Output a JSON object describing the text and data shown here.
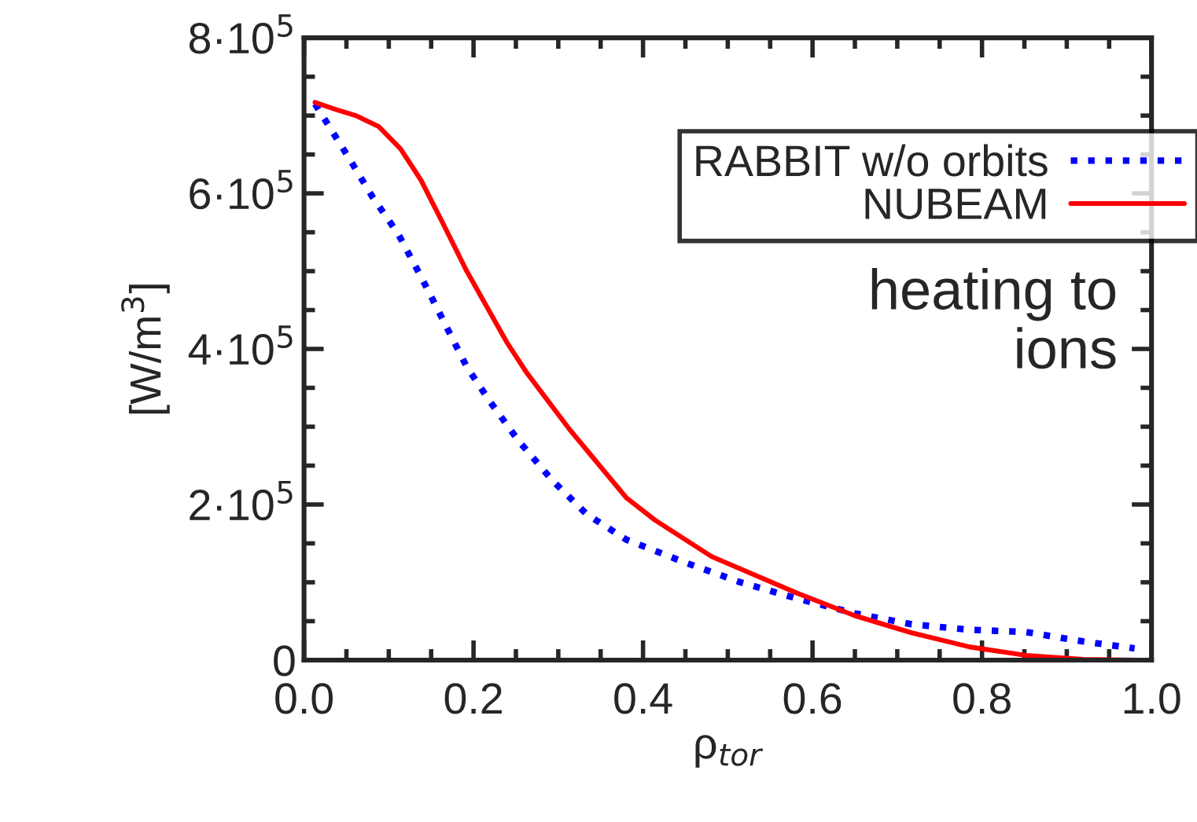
{
  "chart_data": {
    "type": "line",
    "xlabel": "ρ$_{tor}$",
    "ylabel": "[W/m$^{3}$]",
    "annotations": [
      "heating to\nions"
    ],
    "xlim": [
      0,
      1
    ],
    "ylim": [
      0,
      800000
    ],
    "xticks": [
      {
        "value": 0,
        "label": "0.0"
      },
      {
        "value": 0.2,
        "label": "0.2"
      },
      {
        "value": 0.4,
        "label": "0.4"
      },
      {
        "value": 0.6,
        "label": "0.6"
      },
      {
        "value": 0.8,
        "label": "0.8"
      },
      {
        "value": 1,
        "label": "1.0"
      }
    ],
    "yticks": [
      0,
      {
        "value": 200000,
        "label": "2·10$^{5}$"
      },
      {
        "value": 400000,
        "label": "4·10$^{5}$"
      },
      {
        "value": 600000,
        "label": "6·10$^{5}$"
      },
      {
        "value": 800000,
        "label": "8·10$^{5}$"
      }
    ],
    "grid": false,
    "legend": "top right",
    "series": [
      {
        "name": "RABBIT w/o orbits",
        "color": "#0000ff",
        "line_style": "dotted",
        "x": [
          0.013,
          0.051,
          0.081,
          0.111,
          0.138,
          0.165,
          0.192,
          0.219,
          0.253,
          0.293,
          0.333,
          0.38,
          0.448,
          0.515,
          0.582,
          0.65,
          0.717,
          0.785,
          0.852,
          0.919,
          0.98
        ],
        "values": [
          715000,
          649000,
          595000,
          548000,
          493000,
          435000,
          377000,
          333000,
          282000,
          231000,
          188000,
          155000,
          126000,
          100000,
          79000,
          60000,
          46000,
          39000,
          36000,
          24000,
          15000
        ]
      },
      {
        "name": "NUBEAM",
        "color": "#ff0000",
        "line_style": "solid",
        "x": [
          0.013,
          0.037,
          0.061,
          0.088,
          0.114,
          0.138,
          0.165,
          0.192,
          0.239,
          0.263,
          0.313,
          0.38,
          0.414,
          0.481,
          0.582,
          0.65,
          0.717,
          0.785,
          0.852,
          0.919,
          0.983
        ],
        "values": [
          717000,
          708000,
          700000,
          686000,
          657000,
          617000,
          559000,
          500000,
          409000,
          369000,
          297000,
          209000,
          180000,
          133000,
          86000,
          57000,
          35000,
          17000,
          6000,
          1000,
          0
        ]
      }
    ]
  }
}
